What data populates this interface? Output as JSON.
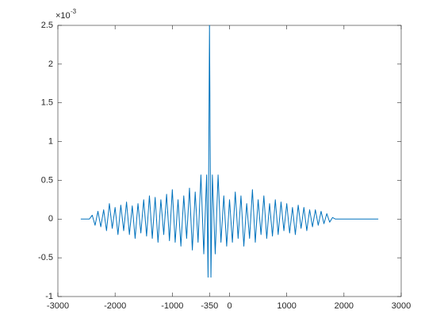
{
  "chart_data": {
    "type": "line",
    "y_exponent_base": "×10",
    "y_exponent": "-3",
    "xlim": [
      -3000,
      3000
    ],
    "xticks": [
      -3000,
      -2000,
      -1000,
      -350,
      0,
      1000,
      2000,
      3000
    ],
    "ylim": [
      -1,
      2.5
    ],
    "yticks": [
      -1,
      -0.5,
      0,
      0.5,
      1,
      1.5,
      2,
      2.5
    ],
    "grid": false,
    "x": [
      -2600,
      -2450,
      -2400,
      -2350,
      -2300,
      -2250,
      -2200,
      -2150,
      -2100,
      -2050,
      -2000,
      -1950,
      -1900,
      -1850,
      -1800,
      -1750,
      -1700,
      -1650,
      -1600,
      -1550,
      -1500,
      -1450,
      -1400,
      -1350,
      -1300,
      -1250,
      -1200,
      -1150,
      -1100,
      -1050,
      -1000,
      -950,
      -900,
      -850,
      -800,
      -750,
      -700,
      -650,
      -600,
      -550,
      -500,
      -450,
      -400,
      -375,
      -350,
      -325,
      -300,
      -250,
      -200,
      -150,
      -100,
      -50,
      0,
      50,
      100,
      150,
      200,
      250,
      300,
      350,
      400,
      450,
      500,
      550,
      600,
      650,
      700,
      750,
      800,
      850,
      900,
      950,
      1000,
      1050,
      1100,
      1150,
      1200,
      1250,
      1300,
      1350,
      1400,
      1450,
      1500,
      1550,
      1600,
      1650,
      1700,
      1750,
      1800,
      1850,
      2600
    ],
    "series": [
      {
        "color": "#0072bd",
        "values": [
          0,
          0,
          0.05,
          -0.08,
          0.1,
          -0.1,
          0.12,
          -0.15,
          0.2,
          -0.12,
          0.15,
          -0.2,
          0.18,
          -0.15,
          0.22,
          -0.2,
          0.17,
          -0.25,
          0.2,
          -0.18,
          0.25,
          -0.22,
          0.3,
          -0.25,
          0.28,
          -0.3,
          0.25,
          -0.2,
          0.32,
          -0.28,
          0.38,
          -0.3,
          0.25,
          -0.35,
          0.3,
          -0.25,
          0.4,
          -0.4,
          0.35,
          -0.3,
          0.57,
          -0.45,
          0.57,
          -0.75,
          2.5,
          -0.75,
          0.57,
          -0.45,
          0.57,
          -0.3,
          0.3,
          -0.35,
          0.25,
          -0.3,
          0.35,
          -0.25,
          0.3,
          -0.35,
          0.2,
          -0.25,
          0.38,
          -0.3,
          0.25,
          -0.2,
          0.3,
          -0.25,
          0.2,
          -0.22,
          0.25,
          -0.2,
          0.22,
          -0.15,
          0.2,
          -0.18,
          0.15,
          -0.2,
          0.18,
          -0.12,
          0.15,
          -0.15,
          0.12,
          -0.1,
          0.12,
          -0.08,
          0.1,
          -0.06,
          0.07,
          -0.04,
          0.02,
          0,
          0
        ]
      }
    ]
  }
}
